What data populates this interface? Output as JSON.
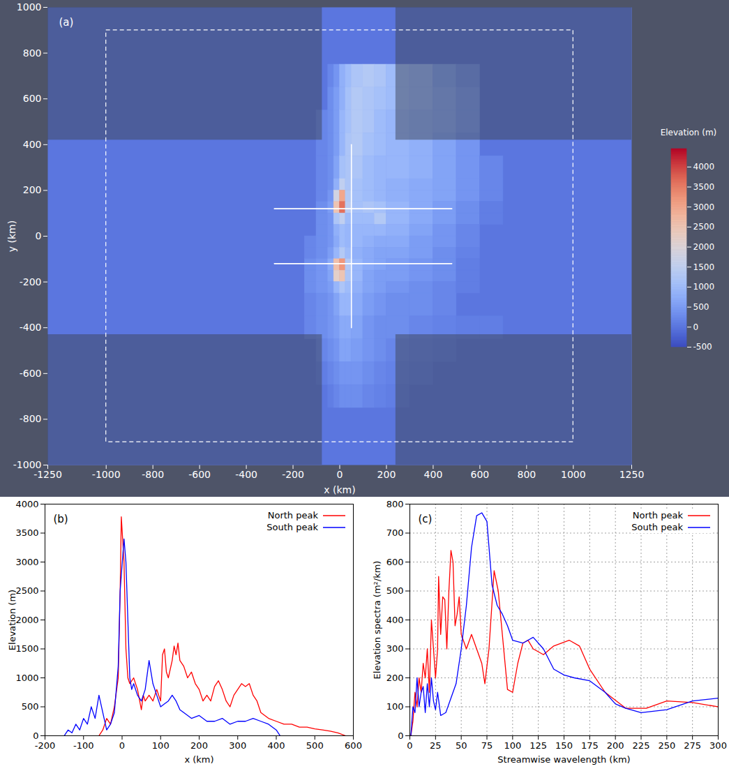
{
  "chart_data": [
    {
      "type": "heatmap",
      "title": "(a)",
      "x_label": "x (km)",
      "y_label": "y (km)",
      "xlim": [
        -1250,
        1250
      ],
      "xticks": [
        -1250,
        -1000,
        -800,
        -600,
        -400,
        -200,
        0,
        200,
        400,
        600,
        800,
        1000,
        1250
      ],
      "ylim": [
        -1000,
        1000
      ],
      "yticks": [
        -1000,
        -800,
        -600,
        -400,
        -200,
        0,
        200,
        400,
        600,
        800,
        1000
      ],
      "sea_level": 0,
      "x_edges": [
        -150,
        -100,
        -50,
        -25,
        0,
        25,
        50,
        100,
        150,
        200,
        300,
        400,
        500,
        600,
        700
      ],
      "y_edges": [
        750,
        650,
        550,
        450,
        350,
        250,
        200,
        150,
        100,
        50,
        0,
        -50,
        -100,
        -150,
        -200,
        -250,
        -350,
        -450,
        -550,
        -650,
        -750
      ],
      "values": [
        [
          null,
          null,
          200,
          400,
          800,
          1000,
          1200,
          1300,
          1200,
          1000,
          900,
          600,
          400,
          null
        ],
        [
          null,
          null,
          300,
          500,
          800,
          1100,
          1300,
          1200,
          1100,
          1000,
          900,
          700,
          500,
          null
        ],
        [
          null,
          200,
          300,
          500,
          900,
          1100,
          1300,
          1200,
          1000,
          900,
          800,
          700,
          500,
          null
        ],
        [
          null,
          200,
          300,
          500,
          900,
          1200,
          1300,
          1100,
          1000,
          900,
          800,
          600,
          400,
          null
        ],
        [
          null,
          200,
          300,
          600,
          1100,
          1200,
          1200,
          1000,
          900,
          900,
          800,
          600,
          400,
          200
        ],
        [
          null,
          200,
          300,
          800,
          1500,
          1200,
          1100,
          1000,
          900,
          800,
          700,
          600,
          400,
          200
        ],
        [
          null,
          200,
          400,
          1800,
          3000,
          1300,
          1100,
          1000,
          900,
          800,
          700,
          600,
          400,
          200
        ],
        [
          null,
          300,
          500,
          2500,
          3600,
          1400,
          1100,
          1200,
          1100,
          900,
          700,
          500,
          300,
          100
        ],
        [
          null,
          300,
          400,
          1200,
          1500,
          1000,
          1000,
          1000,
          1300,
          900,
          700,
          500,
          300,
          100
        ],
        [
          null,
          300,
          400,
          800,
          1000,
          900,
          900,
          900,
          900,
          800,
          600,
          400,
          200,
          null
        ],
        [
          200,
          300,
          400,
          700,
          1000,
          900,
          900,
          800,
          700,
          700,
          500,
          400,
          200,
          null
        ],
        [
          200,
          300,
          500,
          900,
          1300,
          1000,
          800,
          700,
          600,
          600,
          500,
          300,
          150,
          null
        ],
        [
          300,
          400,
          700,
          2600,
          3200,
          1300,
          900,
          700,
          600,
          500,
          400,
          300,
          100,
          null
        ],
        [
          300,
          400,
          600,
          2200,
          2500,
          1200,
          900,
          600,
          500,
          500,
          400,
          300,
          100,
          null
        ],
        [
          300,
          400,
          500,
          900,
          1200,
          1000,
          800,
          600,
          500,
          400,
          300,
          200,
          100,
          null
        ],
        [
          200,
          300,
          400,
          600,
          900,
          900,
          700,
          500,
          400,
          300,
          300,
          200,
          null,
          null
        ],
        [
          200,
          300,
          400,
          500,
          700,
          700,
          600,
          400,
          300,
          300,
          200,
          150,
          100,
          100
        ],
        [
          null,
          200,
          300,
          400,
          600,
          600,
          500,
          400,
          300,
          200,
          150,
          100,
          null,
          null
        ],
        [
          null,
          100,
          200,
          300,
          400,
          400,
          400,
          300,
          200,
          150,
          100,
          null,
          null,
          null
        ],
        [
          null,
          null,
          100,
          200,
          300,
          300,
          300,
          200,
          150,
          100,
          null,
          null,
          null,
          null
        ]
      ],
      "colorbar": {
        "label": "Elevation (m)",
        "range": [
          -500,
          4450
        ],
        "ticks": [
          -500,
          0,
          500,
          1000,
          1500,
          2000,
          2500,
          3000,
          3500,
          4000
        ]
      },
      "domain_box": {
        "x": [
          -1000,
          1000
        ],
        "y": [
          -900,
          900
        ]
      },
      "mesh_refinement": {
        "x": [
          -75,
          240
        ],
        "y": [
          -430,
          420
        ]
      },
      "sections": [
        {
          "x": [
            50,
            50
          ],
          "y": [
            -400,
            400
          ]
        },
        {
          "x": [
            -280,
            480
          ],
          "y": [
            120,
            120
          ]
        },
        {
          "x": [
            -280,
            480
          ],
          "y": [
            -120,
            -120
          ]
        }
      ]
    },
    {
      "type": "line",
      "title": "(b)",
      "x_label": "x (km)",
      "y_label": "Elevation (m)",
      "xlim": [
        -200,
        600
      ],
      "xticks": [
        -200,
        -100,
        0,
        100,
        200,
        300,
        400,
        500,
        600
      ],
      "ylim": [
        0,
        4000
      ],
      "yticks": [
        0,
        500,
        1000,
        1500,
        2000,
        2500,
        3000,
        3500,
        4000
      ],
      "grid": false,
      "legend": "top-right",
      "series": [
        {
          "name": "North peak",
          "color": "#ff0000",
          "x": [
            -60,
            -50,
            -40,
            -30,
            -20,
            -10,
            -5,
            -2,
            5,
            10,
            15,
            20,
            30,
            40,
            50,
            55,
            60,
            70,
            80,
            90,
            100,
            105,
            110,
            115,
            120,
            130,
            135,
            140,
            145,
            150,
            160,
            170,
            180,
            190,
            200,
            210,
            220,
            230,
            240,
            250,
            260,
            270,
            280,
            290,
            300,
            310,
            320,
            330,
            340,
            350,
            360,
            380,
            400,
            420,
            440,
            460,
            480,
            500,
            520,
            540,
            560,
            580
          ],
          "values": [
            0,
            100,
            300,
            200,
            500,
            1000,
            2500,
            3780,
            3000,
            1500,
            1000,
            900,
            1000,
            800,
            450,
            700,
            600,
            700,
            600,
            800,
            600,
            1400,
            1500,
            1100,
            1000,
            1300,
            1550,
            1400,
            1600,
            1300,
            1200,
            1000,
            1100,
            900,
            800,
            600,
            700,
            600,
            850,
            950,
            800,
            600,
            500,
            700,
            800,
            900,
            850,
            900,
            700,
            600,
            400,
            300,
            250,
            200,
            200,
            150,
            150,
            120,
            100,
            80,
            50,
            0
          ]
        },
        {
          "name": "South peak",
          "color": "#0000ff",
          "x": [
            -150,
            -140,
            -130,
            -120,
            -110,
            -100,
            -90,
            -80,
            -70,
            -60,
            -50,
            -40,
            -30,
            -20,
            -10,
            -5,
            5,
            10,
            15,
            20,
            25,
            30,
            40,
            50,
            60,
            70,
            80,
            90,
            100,
            110,
            120,
            130,
            140,
            150,
            160,
            180,
            200,
            220,
            240,
            260,
            280,
            300,
            320,
            340,
            360,
            380,
            400,
            410
          ],
          "values": [
            0,
            100,
            50,
            200,
            100,
            300,
            200,
            500,
            300,
            700,
            400,
            100,
            200,
            400,
            1200,
            2500,
            3400,
            3000,
            2000,
            1000,
            800,
            900,
            700,
            600,
            800,
            1300,
            900,
            700,
            500,
            550,
            600,
            700,
            600,
            450,
            400,
            300,
            350,
            250,
            250,
            300,
            200,
            250,
            250,
            300,
            250,
            200,
            100,
            0
          ]
        }
      ]
    },
    {
      "type": "line",
      "title": "(c)",
      "x_label": "Streamwise wavelength (km)",
      "y_label": "Elevation spectra (m²/km)",
      "xlim": [
        0,
        300
      ],
      "xticks": [
        0,
        25,
        50,
        75,
        100,
        125,
        150,
        175,
        200,
        225,
        250,
        275,
        300
      ],
      "ylim": [
        0,
        800
      ],
      "yticks": [
        0,
        100,
        200,
        300,
        400,
        500,
        600,
        700,
        800
      ],
      "grid": true,
      "legend": "top-right",
      "series": [
        {
          "name": "North peak",
          "color": "#ff0000",
          "x": [
            1,
            3,
            5,
            7,
            9,
            11,
            13,
            15,
            17,
            19,
            21,
            23,
            25,
            27,
            28,
            30,
            32,
            34,
            36,
            38,
            40,
            42,
            44,
            46,
            48,
            50,
            55,
            60,
            65,
            70,
            73,
            77,
            82,
            86,
            90,
            95,
            100,
            105,
            110,
            115,
            120,
            130,
            140,
            155,
            165,
            175,
            190,
            210,
            230,
            250,
            275,
            300
          ],
          "values": [
            0,
            50,
            150,
            100,
            200,
            150,
            250,
            200,
            300,
            150,
            400,
            300,
            200,
            300,
            550,
            350,
            480,
            470,
            300,
            500,
            640,
            600,
            380,
            420,
            480,
            350,
            300,
            350,
            300,
            250,
            180,
            300,
            570,
            500,
            350,
            160,
            150,
            250,
            320,
            330,
            300,
            280,
            310,
            330,
            310,
            230,
            150,
            95,
            95,
            120,
            115,
            100
          ]
        },
        {
          "name": "South peak",
          "color": "#0000ff",
          "x": [
            1,
            3,
            5,
            7,
            9,
            11,
            13,
            15,
            17,
            19,
            21,
            23,
            25,
            27,
            30,
            35,
            40,
            45,
            50,
            55,
            60,
            65,
            70,
            75,
            80,
            85,
            90,
            95,
            100,
            110,
            120,
            130,
            140,
            150,
            160,
            175,
            190,
            200,
            210,
            225,
            250,
            275,
            300
          ],
          "values": [
            0,
            100,
            80,
            200,
            100,
            150,
            170,
            80,
            180,
            100,
            200,
            120,
            90,
            150,
            70,
            80,
            130,
            180,
            300,
            450,
            650,
            760,
            770,
            740,
            520,
            450,
            420,
            380,
            330,
            320,
            340,
            300,
            230,
            210,
            200,
            190,
            150,
            110,
            95,
            80,
            90,
            120,
            130
          ]
        }
      ]
    }
  ]
}
